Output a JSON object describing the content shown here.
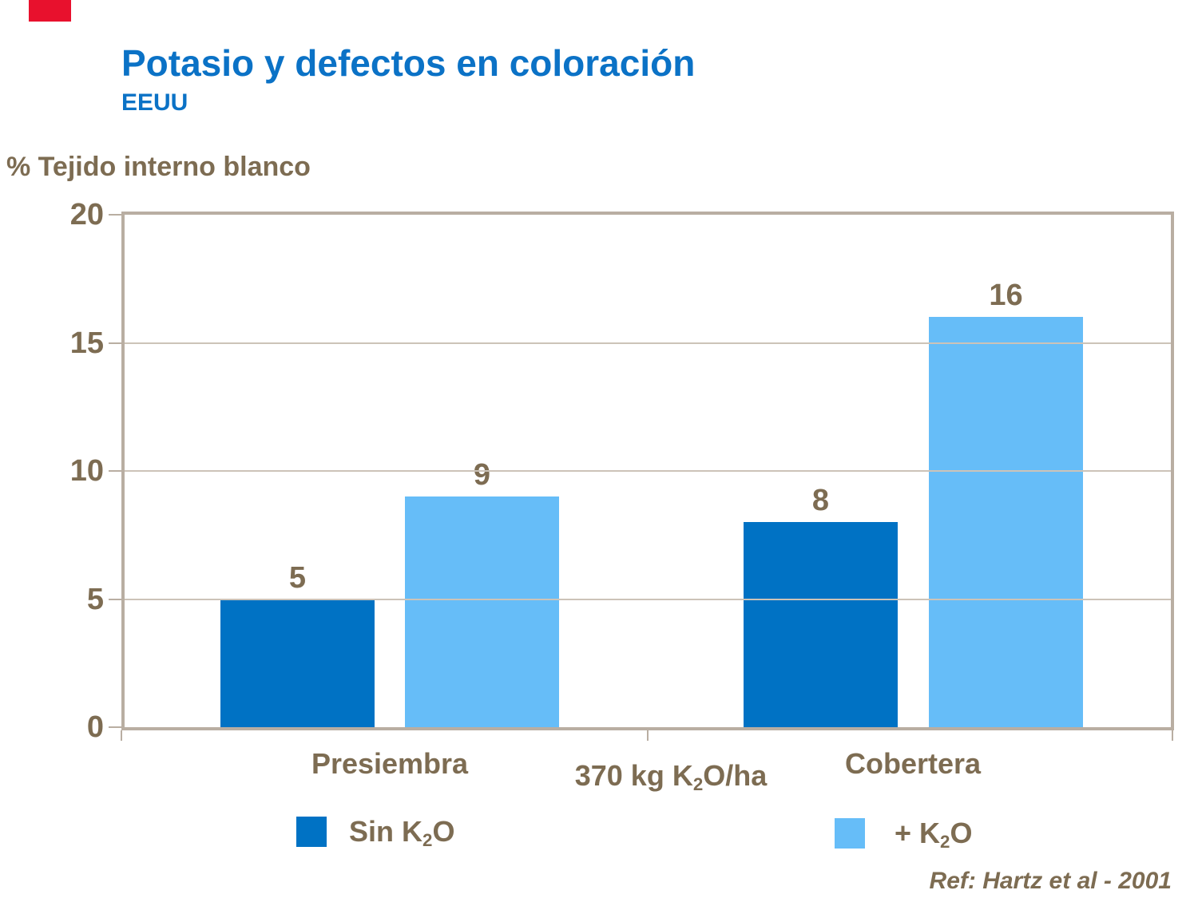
{
  "slide": {
    "title": "Potasio y defectos en coloración",
    "subtitle": "EEUU",
    "title_color": "#0B72C6",
    "text_color": "#7D6C52",
    "accent_color": "#E8112D",
    "axis_color": "#B9AEA2",
    "gridline_color": "#CCC3B8"
  },
  "chart_data": {
    "type": "bar",
    "y_axis_title": "% Tejido interno blanco",
    "categories": [
      "Presiembra",
      "Cobertera"
    ],
    "series": [
      {
        "name_pre": "Sin K",
        "name_sub": "2",
        "name_post": "O",
        "color": "#0072C4",
        "values": [
          5,
          8
        ]
      },
      {
        "name_pre": "+ K",
        "name_sub": "2",
        "name_post": "O",
        "color": "#66BDF8",
        "values": [
          9,
          16
        ]
      }
    ],
    "ylim": [
      0,
      20
    ],
    "yticks": [
      0,
      5,
      10,
      15,
      20
    ],
    "grid": "horizontal",
    "legend_position": "bottom",
    "axis_note": {
      "pre": "370 kg K",
      "sub": "2",
      "post": "O/ha"
    }
  },
  "footer": {
    "ref": "Ref: Hartz et al - 2001"
  }
}
